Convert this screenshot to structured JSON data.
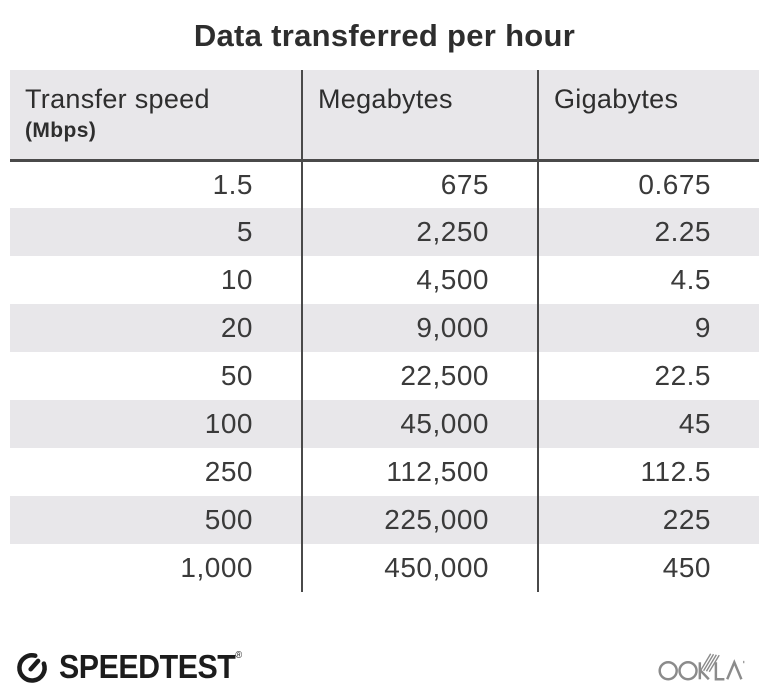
{
  "title": "Data transferred per hour",
  "table": {
    "columns": [
      {
        "label": "Transfer speed",
        "sublabel": "(Mbps)"
      },
      {
        "label": "Megabytes"
      },
      {
        "label": "Gigabytes"
      }
    ],
    "rows": [
      [
        "1.5",
        "675",
        "0.675"
      ],
      [
        "5",
        "2,250",
        "2.25"
      ],
      [
        "10",
        "4,500",
        "4.5"
      ],
      [
        "20",
        "9,000",
        "9"
      ],
      [
        "50",
        "22,500",
        "22.5"
      ],
      [
        "100",
        "45,000",
        "45"
      ],
      [
        "250",
        "112,500",
        "112.5"
      ],
      [
        "500",
        "225,000",
        "225"
      ],
      [
        "1,000",
        "450,000",
        "450"
      ]
    ]
  },
  "footer": {
    "speedtest_label": "SPEEDTEST",
    "speedtest_trademark": "®",
    "ookla_label": "OOKLA"
  },
  "colors": {
    "background": "#ffffff",
    "stripe": "#e8e7ea",
    "rule": "#4a4a4a",
    "text": "#2e2e2e",
    "number": "#3a3a3a",
    "brand_black": "#1c1c1c",
    "ookla_gray": "#8b8b8b"
  },
  "chart_data": {
    "type": "table",
    "title": "Data transferred per hour",
    "columns": [
      "Transfer speed (Mbps)",
      "Megabytes",
      "Gigabytes"
    ],
    "rows": [
      [
        1.5,
        675,
        0.675
      ],
      [
        5,
        2250,
        2.25
      ],
      [
        10,
        4500,
        4.5
      ],
      [
        20,
        9000,
        9
      ],
      [
        50,
        22500,
        22.5
      ],
      [
        100,
        45000,
        45
      ],
      [
        250,
        112500,
        112.5
      ],
      [
        500,
        225000,
        225
      ],
      [
        1000,
        450000,
        450
      ]
    ]
  }
}
